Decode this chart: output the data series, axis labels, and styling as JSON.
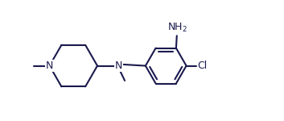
{
  "bg_color": "#ffffff",
  "bond_color": "#1a1a4e",
  "label_color": "#1a1a4e",
  "line_width": 1.5,
  "font_size": 9,
  "fig_width": 3.53,
  "fig_height": 1.5,
  "dpi": 100,
  "xlim": [
    0.0,
    7.0
  ],
  "ylim": [
    -1.6,
    1.8
  ]
}
